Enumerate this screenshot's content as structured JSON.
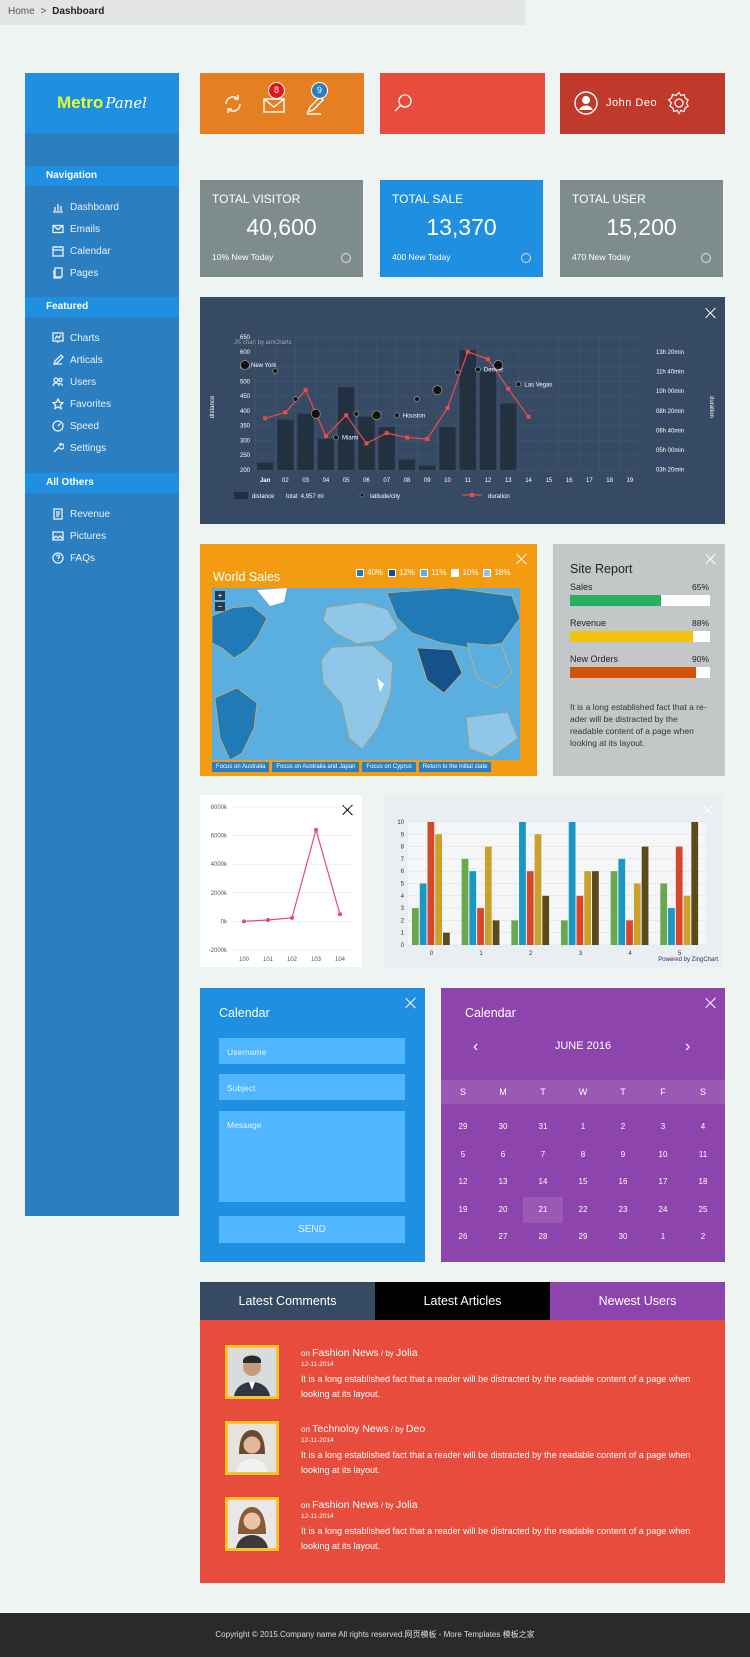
{
  "brand": {
    "logo_main": "Metro",
    "logo_script": "Panel"
  },
  "sidebar": {
    "sections": [
      {
        "title": "Navigation",
        "items": [
          "Dashboard",
          "Emails",
          "Calendar",
          "Pages"
        ]
      },
      {
        "title": "Featured",
        "items": [
          "Charts",
          "Articals",
          "Users",
          "Favorites",
          "Speed",
          "Settings"
        ]
      },
      {
        "title": "All Others",
        "items": [
          "Revenue",
          "Pictures",
          "FAQs"
        ]
      }
    ]
  },
  "topbar": {
    "mail_count": "8",
    "notif_count": "9",
    "user_name": "John Deo"
  },
  "breadcrumb": {
    "home": "Home",
    "separator": ">",
    "current": "Dashboard"
  },
  "stats": [
    {
      "label_a": "TOTAL ",
      "label_b": "VISITOR",
      "value": "40,600",
      "sub": "10% New Today",
      "color": "#7f8c8d"
    },
    {
      "label_a": "TOTAL ",
      "label_b": "SALE",
      "value": "13,370",
      "sub": "400 New Today",
      "color": "#1f8fe2"
    },
    {
      "label_a": "TOTAL ",
      "label_b": "USER",
      "value": "15,200",
      "sub": "470 New Today",
      "color": "#7f8c8d"
    }
  ],
  "chart_data": [
    {
      "type": "bar",
      "title": "JS chart by amCharts",
      "xlabel": "",
      "ylabel": "distance",
      "y2label": "duration",
      "categories": [
        "Jan",
        "02",
        "03",
        "04",
        "05",
        "06",
        "07",
        "08",
        "09",
        "10",
        "11",
        "12",
        "13",
        "14",
        "15",
        "16",
        "17",
        "18",
        "19"
      ],
      "yticks": [
        650,
        600,
        550,
        500,
        450,
        400,
        350,
        300,
        250,
        200
      ],
      "y2ticks": [
        "13h 20min",
        "11h 40min",
        "10h 00min",
        "08h 20min",
        "06h 40min",
        "05h 00min",
        "03h 20min"
      ],
      "ylim": [
        200,
        650
      ],
      "series": [
        {
          "name": "distance",
          "values": [
            225,
            370,
            390,
            305,
            480,
            380,
            345,
            235,
            215,
            345,
            605,
            535,
            425,
            null,
            null,
            null,
            null,
            null,
            null
          ]
        },
        {
          "name": "duration",
          "values": [
            375,
            395,
            470,
            315,
            385,
            290,
            325,
            310,
            305,
            410,
            600,
            575,
            475,
            380,
            null,
            null,
            null,
            null,
            null
          ]
        },
        {
          "name": "latitude/city",
          "values": [
            null,
            null,
            null,
            null,
            null,
            null,
            null,
            null,
            null,
            null,
            null,
            null,
            null,
            null,
            null,
            null,
            null,
            null,
            null
          ]
        }
      ],
      "points": [
        {
          "label": "New York",
          "x": 0,
          "y": 555
        },
        {
          "label": "",
          "x": 1,
          "y": 535
        },
        {
          "label": "",
          "x": 2,
          "y": 440
        },
        {
          "label": "",
          "x": 3,
          "y": 390
        },
        {
          "label": "Miami",
          "x": 4,
          "y": 310
        },
        {
          "label": "",
          "x": 5,
          "y": 390
        },
        {
          "label": "",
          "x": 6,
          "y": 385
        },
        {
          "label": "Houston",
          "x": 7,
          "y": 385
        },
        {
          "label": "",
          "x": 8,
          "y": 440
        },
        {
          "label": "",
          "x": 9,
          "y": 470
        },
        {
          "label": "",
          "x": 10,
          "y": 530
        },
        {
          "label": "Denver",
          "x": 11,
          "y": 540
        },
        {
          "label": "",
          "x": 12,
          "y": 555
        },
        {
          "label": "Las Vegas",
          "x": 13,
          "y": 490
        }
      ],
      "legend": {
        "distance": "distance",
        "total": "total: 4,957 mi",
        "latcity": "latitude/city",
        "duration": "duration"
      }
    },
    {
      "type": "line",
      "categories": [
        "100",
        "101",
        "102",
        "103",
        "104"
      ],
      "values": [
        0,
        100000,
        250000,
        6400000,
        500000
      ],
      "ytick_labels": [
        "8000k",
        "6000k",
        "4000k",
        "2000k",
        "0k",
        "-2000k"
      ],
      "yticks": [
        8000000,
        6000000,
        4000000,
        2000000,
        0,
        -2000000
      ],
      "ylim": [
        -2000000,
        8000000
      ]
    },
    {
      "type": "bar",
      "categories": [
        "0",
        "1",
        "2",
        "3",
        "4",
        "5"
      ],
      "yticks": [
        0,
        1,
        2,
        3,
        4,
        5,
        6,
        7,
        8,
        9,
        10
      ],
      "ylim": [
        0,
        10
      ],
      "series": [
        {
          "color": "#6aa84f",
          "values": [
            3,
            7,
            2,
            2,
            6,
            5
          ]
        },
        {
          "color": "#1a98c4",
          "values": [
            5,
            6,
            10,
            10,
            7,
            3
          ]
        },
        {
          "color": "#d9472b",
          "values": [
            10,
            3,
            6,
            4,
            2,
            8
          ]
        },
        {
          "color": "#c9a12b",
          "values": [
            9,
            8,
            9,
            6,
            5,
            4
          ]
        },
        {
          "color": "#5b4a1a",
          "values": [
            1,
            2,
            4,
            6,
            8,
            10
          ]
        }
      ],
      "credit": "Powered by ZingChart"
    },
    {
      "type": "table",
      "title": "Site Report",
      "rows": [
        {
          "label": "Sales",
          "percent": "65%",
          "value": 65,
          "color": "#27ae60"
        },
        {
          "label": "Revenue",
          "percent": "88%",
          "value": 88,
          "color": "#f1c40f"
        },
        {
          "label": "New Orders",
          "percent": "90%",
          "value": 90,
          "color": "#d35400"
        }
      ]
    }
  ],
  "site_report": {
    "text": "It is a long established fact that a re-ader will be distracted by the readable content of a page when looking at its layout."
  },
  "world_sales": {
    "title": "World Sales",
    "legend": [
      {
        "label": "40%",
        "color": "#1f7ab5"
      },
      {
        "label": "12%",
        "color": "#16528a"
      },
      {
        "label": "11%",
        "color": "#5aaee0"
      },
      {
        "label": "10%",
        "color": "#ffffff"
      },
      {
        "label": "18%",
        "color": "#8fc7ea"
      }
    ],
    "zoom_in": "+",
    "zoom_out": "−",
    "buttons": [
      "Focus on Australia",
      "Focus on Australia and Japan",
      "Focus on Cyprus",
      "Return to the initial state"
    ]
  },
  "contact_form": {
    "title": "Calendar",
    "username": "Username",
    "subject": "Subject",
    "message": "Message",
    "send": "SEND"
  },
  "calendar": {
    "title": "Calendar",
    "month": "JUNE 2016",
    "prev": "‹",
    "next": "›",
    "weekdays": [
      "S",
      "M",
      "T",
      "W",
      "T",
      "F",
      "S"
    ],
    "days": [
      "29",
      "30",
      "31",
      "1",
      "2",
      "3",
      "4",
      "5",
      "6",
      "7",
      "8",
      "9",
      "10",
      "11",
      "12",
      "13",
      "14",
      "15",
      "16",
      "17",
      "18",
      "19",
      "20",
      "21",
      "22",
      "23",
      "24",
      "25",
      "26",
      "27",
      "28",
      "29",
      "30",
      "1",
      "2"
    ],
    "selected_index": 23
  },
  "tabs": [
    "Latest Comments",
    "Latest Articles",
    "Newest Users"
  ],
  "articles": [
    {
      "on": "on ",
      "cat": "Fashion News",
      "by": " / by ",
      "author": "Jolia",
      "date": "12-11-2014",
      "text": "It is a long established fact that a reader will be distracted by the readable content of a page when looking at its layout."
    },
    {
      "on": "on ",
      "cat": "Technoloy News",
      "by": " / by ",
      "author": "Deo",
      "date": "12-11-2014",
      "text": "It is a long established fact that a reader will be distracted by the readable content of a page when looking at its layout."
    },
    {
      "on": "on ",
      "cat": "Fashion News",
      "by": " / by ",
      "author": "Jolia",
      "date": "12-11-2014",
      "text": "It is a long established fact that a reader will be distracted by the readable content of a page when looking at its layout."
    }
  ],
  "footer": {
    "text": "Copyright © 2015.Company name All rights reserved.网页模板 - More Templates 模板之家"
  }
}
